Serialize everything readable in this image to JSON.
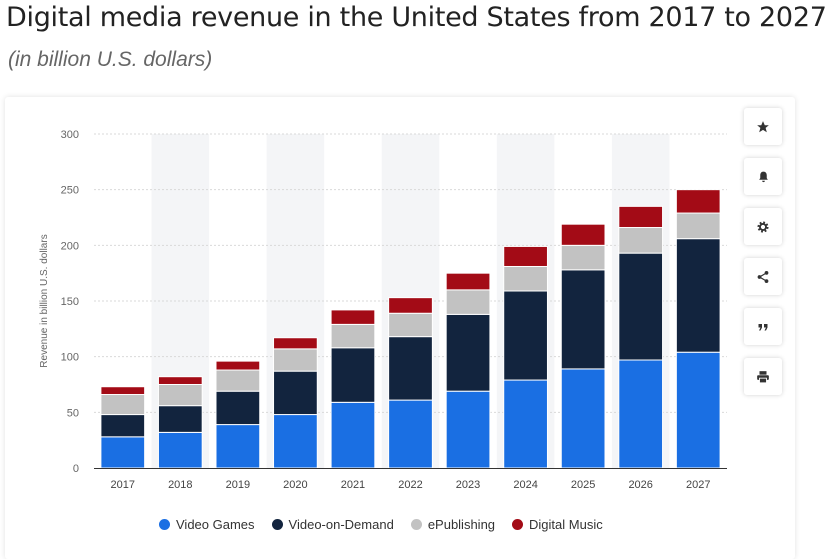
{
  "title": "Digital media revenue in the United States from 2017 to 2027",
  "subtitle": "(in billion U.S. dollars)",
  "toolbar": {
    "icons": [
      "star-icon",
      "bell-icon",
      "gear-icon",
      "share-icon",
      "quote-icon",
      "print-icon"
    ]
  },
  "colors": {
    "Video Games": "#1a6fe3",
    "Video-on-Demand": "#12243e",
    "ePublishing": "#c2c2c2",
    "Digital Music": "#a30b16"
  },
  "chart_data": {
    "type": "bar",
    "stacked": true,
    "categories": [
      "2017",
      "2018",
      "2019",
      "2020",
      "2021",
      "2022",
      "2023",
      "2024",
      "2025",
      "2026",
      "2027"
    ],
    "series": [
      {
        "name": "Video Games",
        "values": [
          28,
          32,
          39,
          48,
          59,
          61,
          69,
          79,
          89,
          97,
          104
        ]
      },
      {
        "name": "Video-on-Demand",
        "values": [
          20,
          24,
          30,
          39,
          49,
          57,
          69,
          80,
          89,
          96,
          102
        ]
      },
      {
        "name": "ePublishing",
        "values": [
          18,
          19,
          19,
          20,
          21,
          21,
          22,
          22,
          22,
          23,
          23
        ]
      },
      {
        "name": "Digital Music",
        "values": [
          7,
          7,
          8,
          10,
          13,
          14,
          15,
          18,
          19,
          19,
          21
        ]
      }
    ],
    "title": "Digital media revenue in the United States from 2017 to 2027",
    "subtitle": "(in billion U.S. dollars)",
    "xlabel": "",
    "ylabel": "Revenue in billion U.S. dollars",
    "ylim": [
      0,
      300
    ],
    "yticks": [
      0,
      50,
      100,
      150,
      200,
      250,
      300
    ],
    "grid": true,
    "legend": "bottom"
  }
}
